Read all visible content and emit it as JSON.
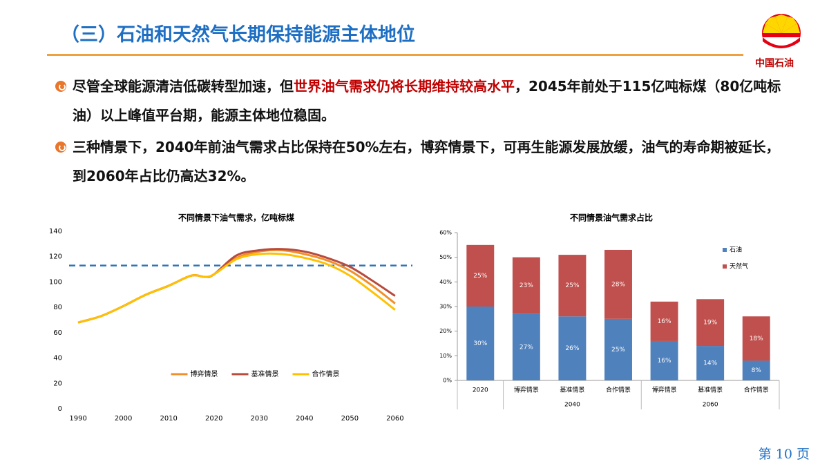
{
  "header": {
    "title": "（三）石油和天然气长期保持能源主体地位",
    "logo_text": "中国石油"
  },
  "bullets": [
    {
      "before": "尽管全球能源清洁低碳转型加速，但",
      "highlight": "世界油气需求仍将长期维持较高水平",
      "after": "，2045年前处于115亿吨标煤（80亿吨标油）以上峰值平台期，能源主体地位稳固。"
    },
    {
      "before": "三种情景下，2040年前油气需求占比保持在50%左右，博弈情景下，可再生能源发展放缓，油气的寿命期被延长，到2060年占比仍高达32%。"
    }
  ],
  "page_number": "第 10 页",
  "chart_data": [
    {
      "type": "line",
      "title": "不同情景下油气需求，亿吨标煤",
      "x": [
        1990,
        1995,
        2000,
        2005,
        2010,
        2015,
        2018,
        2020,
        2025,
        2030,
        2035,
        2040,
        2045,
        2050,
        2055,
        2060
      ],
      "series": [
        {
          "name": "博弈情景",
          "color": "#F0902A",
          "values": [
            68,
            73,
            81,
            90,
            97,
            105,
            104,
            106,
            119,
            124,
            125,
            122,
            117,
            109,
            97,
            83
          ]
        },
        {
          "name": "基准情景",
          "color": "#B84A3E",
          "values": [
            68,
            73,
            81,
            90,
            97,
            105,
            104,
            106,
            121,
            125,
            126,
            124,
            119,
            112,
            101,
            89
          ]
        },
        {
          "name": "合作情景",
          "color": "#FFC000",
          "values": [
            68,
            73,
            81,
            90,
            97,
            105,
            104,
            106,
            118,
            122,
            122,
            119,
            114,
            105,
            92,
            78
          ]
        }
      ],
      "xlim": [
        1988,
        2062
      ],
      "xticks": [
        1990,
        2000,
        2010,
        2020,
        2030,
        2040,
        2050,
        2060
      ],
      "ylim": [
        0,
        140
      ],
      "yticks": [
        0,
        20,
        40,
        60,
        80,
        100,
        120,
        140
      ],
      "hline": 113,
      "hline_color": "#2E75B6",
      "grid": false,
      "legend": "bottom"
    },
    {
      "type": "bar",
      "stacked": true,
      "title": "不同情景油气需求占比",
      "categories": [
        "2020",
        "博弈情景",
        "基准情景",
        "合作情景",
        "博弈情景",
        "基准情景",
        "合作情景"
      ],
      "category_group": [
        null,
        "2040",
        "2040",
        "2040",
        "2060",
        "2060",
        "2060"
      ],
      "series": [
        {
          "name": "石油",
          "color": "#4F81BD",
          "values": [
            30,
            27,
            26,
            25,
            16,
            14,
            8
          ],
          "value_labels": [
            "30%",
            "27%",
            "26%",
            "25%",
            "16%",
            "14%",
            "8%"
          ]
        },
        {
          "name": "天然气",
          "color": "#C0504D",
          "values": [
            25,
            23,
            25,
            28,
            16,
            19,
            18
          ],
          "value_labels": [
            "25%",
            "23%",
            "25%",
            "28%",
            "16%",
            "19%",
            "18%"
          ]
        }
      ],
      "ylim": [
        0,
        60
      ],
      "yticks": [
        {
          "value": 0,
          "label": "0%"
        },
        {
          "value": 10,
          "label": "10%"
        },
        {
          "value": 20,
          "label": "20%"
        },
        {
          "value": 30,
          "label": "30%"
        },
        {
          "value": 40,
          "label": "40%"
        },
        {
          "value": 50,
          "label": "50%"
        },
        {
          "value": 60,
          "label": "60%"
        }
      ],
      "grid": false,
      "legend": "right"
    }
  ]
}
